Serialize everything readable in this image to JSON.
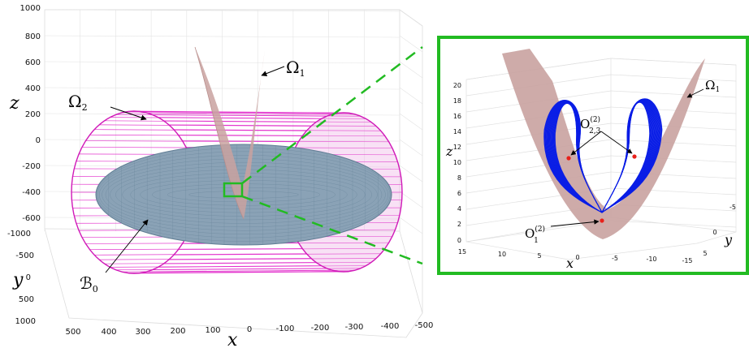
{
  "main_plot": {
    "x_label": "x",
    "y_label": "y",
    "z_label": "z",
    "z_ticks": [
      "1000",
      "800",
      "600",
      "400",
      "200",
      "0",
      "-200",
      "-400",
      "-600"
    ],
    "y_ticks": [
      "-1000",
      "-500",
      "0",
      "500",
      "1000"
    ],
    "x_ticks": [
      "500",
      "400",
      "300",
      "200",
      "100",
      "0",
      "-100",
      "-200",
      "-300",
      "-400",
      "-500"
    ],
    "omega1_label": "Ω",
    "omega1_sub": "1",
    "omega2_label": "Ω",
    "omega2_sub": "2",
    "b0_label": "ℬ",
    "b0_sub": "0",
    "colors": {
      "cylinder": "#e020c8",
      "ellipsoid": "#7d98ae",
      "surface": "#c9a2a0",
      "zoom": "#22bb22"
    }
  },
  "inset_plot": {
    "x_label": "x",
    "y_label": "y",
    "z_label": "z",
    "z_ticks": [
      "20",
      "18",
      "16",
      "14",
      "12",
      "10",
      "8",
      "6",
      "4",
      "2",
      "0"
    ],
    "x_ticks": [
      "15",
      "10",
      "5",
      "0",
      "-5",
      "-10",
      "-15"
    ],
    "y_ticks": [
      "-5",
      "0",
      "5"
    ],
    "omega1_label": "Ω",
    "omega1_sub": "1",
    "o23_label": "O",
    "o23_sup": "(2)",
    "o23_sub": "2,3",
    "o1_label": "O",
    "o1_sup": "(2)",
    "o1_sub": "1",
    "colors": {
      "attractor": "#0a1ee6",
      "points": "#e8201a",
      "surface": "#c9a2a0"
    }
  }
}
